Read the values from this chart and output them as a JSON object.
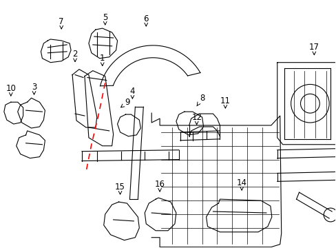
{
  "bg_color": "#ffffff",
  "line_color": "#000000",
  "red_dash_color": "#ff0000",
  "label_fontsize": 8.5,
  "fig_width": 4.89,
  "fig_height": 3.6
}
